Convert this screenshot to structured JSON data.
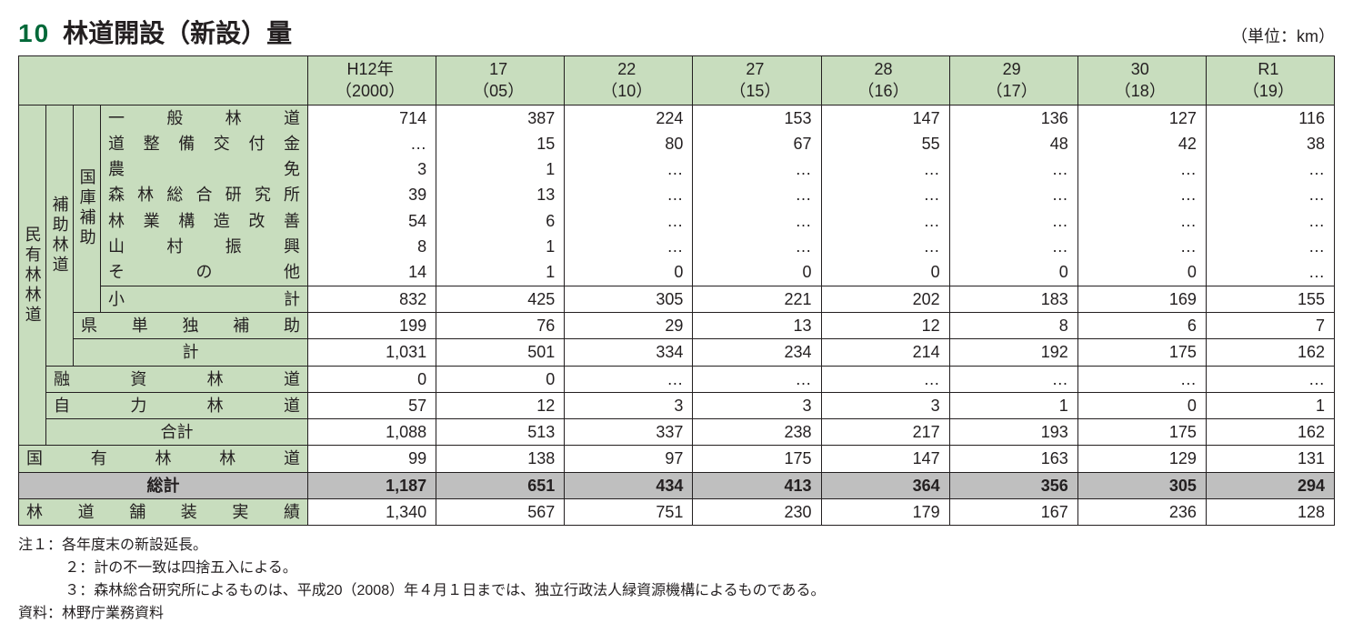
{
  "table": {
    "number": "10",
    "title": "林道開設（新設）量",
    "unit": "（単位：km）",
    "columns": [
      {
        "line1": "H12年",
        "line2": "（2000）"
      },
      {
        "line1": "17",
        "line2": "（05）"
      },
      {
        "line1": "22",
        "line2": "（10）"
      },
      {
        "line1": "27",
        "line2": "（15）"
      },
      {
        "line1": "28",
        "line2": "（16）"
      },
      {
        "line1": "29",
        "line2": "（17）"
      },
      {
        "line1": "30",
        "line2": "（18）"
      },
      {
        "line1": "R1",
        "line2": "（19）"
      }
    ],
    "stubs": {
      "minyu": "民有林林道",
      "hojo": "補助林道",
      "kokko": "国庫補助"
    },
    "rows": {
      "ippan": {
        "label": "一般林道",
        "vals": [
          "714",
          "387",
          "224",
          "153",
          "147",
          "136",
          "127",
          "116"
        ]
      },
      "doseibi": {
        "label": "道整備交付金",
        "vals": [
          "…",
          "15",
          "80",
          "67",
          "55",
          "48",
          "42",
          "38"
        ]
      },
      "noumen": {
        "label": "農免",
        "vals": [
          "3",
          "1",
          "…",
          "…",
          "…",
          "…",
          "…",
          "…"
        ]
      },
      "shinrin": {
        "label": "森林総合研究所",
        "vals": [
          "39",
          "13",
          "…",
          "…",
          "…",
          "…",
          "…",
          "…"
        ]
      },
      "ringyo": {
        "label": "林業構造改善",
        "vals": [
          "54",
          "6",
          "…",
          "…",
          "…",
          "…",
          "…",
          "…"
        ]
      },
      "sanson": {
        "label": "山村振興",
        "vals": [
          "8",
          "1",
          "…",
          "…",
          "…",
          "…",
          "…",
          "…"
        ]
      },
      "sonota": {
        "label": "その他",
        "vals": [
          "14",
          "1",
          "0",
          "0",
          "0",
          "0",
          "0",
          "…"
        ]
      },
      "shokei": {
        "label": "小計",
        "vals": [
          "832",
          "425",
          "305",
          "221",
          "202",
          "183",
          "169",
          "155"
        ]
      },
      "kendoku": {
        "label": "県単独補助",
        "vals": [
          "199",
          "76",
          "29",
          "13",
          "12",
          "8",
          "6",
          "7"
        ]
      },
      "kei": {
        "label": "計",
        "vals": [
          "1,031",
          "501",
          "334",
          "234",
          "214",
          "192",
          "175",
          "162"
        ]
      },
      "yuushi": {
        "label": "融資林道",
        "vals": [
          "0",
          "0",
          "…",
          "…",
          "…",
          "…",
          "…",
          "…"
        ]
      },
      "jiriki": {
        "label": "自力林道",
        "vals": [
          "57",
          "12",
          "3",
          "3",
          "3",
          "1",
          "0",
          "1"
        ]
      },
      "goukei": {
        "label": "合計",
        "vals": [
          "1,088",
          "513",
          "337",
          "238",
          "217",
          "193",
          "175",
          "162"
        ]
      },
      "kokuyurin": {
        "label": "国有林林道",
        "vals": [
          "99",
          "138",
          "97",
          "175",
          "147",
          "163",
          "129",
          "131"
        ]
      },
      "soukei": {
        "label": "総計",
        "vals": [
          "1,187",
          "651",
          "434",
          "413",
          "364",
          "356",
          "305",
          "294"
        ]
      },
      "hosou": {
        "label": "林道舗装実績",
        "vals": [
          "1,340",
          "567",
          "751",
          "230",
          "179",
          "167",
          "236",
          "128"
        ]
      }
    },
    "notes": {
      "n1": "注１：各年度末の新設延長。",
      "n2": "２：計の不一致は四捨五入による。",
      "n3": "３：森林総合研究所によるものは、平成20（2008）年４月１日までは、独立行政法人緑資源機構によるものである。",
      "src": "資料：林野庁業務資料"
    },
    "colors": {
      "header_bg": "#c8ddbe",
      "grey_bg": "#bfbfbf",
      "border": "#231f20",
      "accent": "#006838"
    }
  }
}
